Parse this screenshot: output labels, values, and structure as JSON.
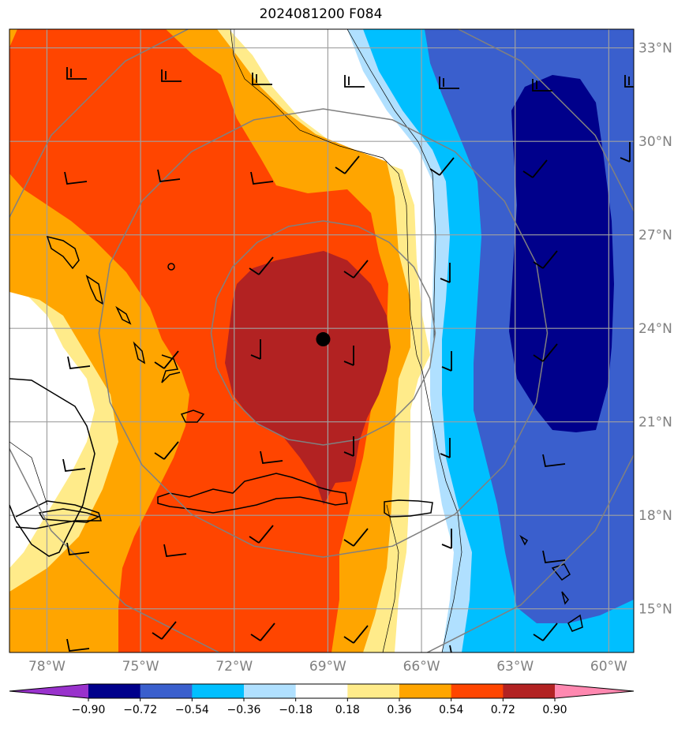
{
  "title": "2024081200 F084",
  "map": {
    "lat_labels": [
      "33°N",
      "30°N",
      "27°N",
      "24°N",
      "21°N",
      "18°N",
      "15°N"
    ],
    "lat_values": [
      33,
      30,
      27,
      24,
      21,
      18,
      15
    ],
    "lon_labels": [
      "78°W",
      "75°W",
      "72°W",
      "69°W",
      "66°W",
      "63°W",
      "60°W"
    ],
    "lon_values": [
      -78,
      -75,
      -72,
      -69,
      -66,
      -63,
      -60
    ],
    "extent": {
      "lon_min": -79.2,
      "lon_max": -59.2,
      "lat_min": 13.6,
      "lat_max": 33.6
    },
    "center_marker": {
      "lon": -69.15,
      "lat": 23.65
    },
    "range_ring_radii_deg": [
      2.7,
      5.4,
      8.1
    ],
    "grid_color": "#a0a0a0",
    "ring_color": "#808080"
  },
  "colorbar": {
    "ticks": [
      "−0.90",
      "−0.72",
      "−0.54",
      "−0.36",
      "−0.18",
      "0.18",
      "0.36",
      "0.54",
      "0.72",
      "0.90"
    ],
    "colors": [
      "#9932cc",
      "#00008b",
      "#3a5fcd",
      "#00bfff",
      "#b0e0ff",
      "#ffffff",
      "#ffeb8a",
      "#ffa500",
      "#ff4500",
      "#b22222",
      "#ff88b0"
    ]
  }
}
